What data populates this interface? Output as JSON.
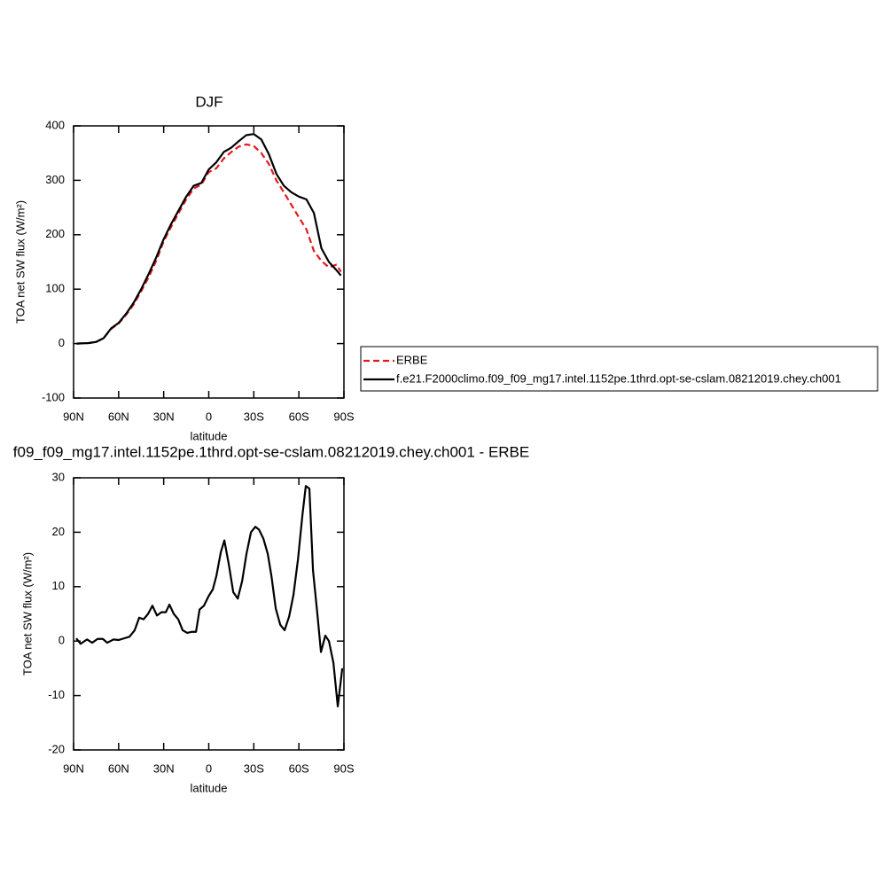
{
  "chart_data": [
    {
      "type": "line",
      "title": "DJF",
      "xlabel": "latitude",
      "ylabel": "TOA net SW flux (W/m²)",
      "x": [
        88,
        80,
        75,
        70,
        65,
        60,
        55,
        50,
        45,
        40,
        35,
        30,
        25,
        20,
        15,
        10,
        5,
        0,
        -5,
        -10,
        -15,
        -20,
        -25,
        -30,
        -35,
        -40,
        -45,
        -50,
        -55,
        -60,
        -65,
        -70,
        -75,
        -80,
        -85,
        -88
      ],
      "series": [
        {
          "name": "ERBE",
          "color": "#e31a1c",
          "dash": true,
          "values": [
            0,
            1,
            3,
            10,
            27,
            37,
            53,
            72,
            96,
            122,
            152,
            188,
            215,
            240,
            265,
            285,
            292,
            315,
            322,
            340,
            352,
            362,
            366,
            363,
            350,
            330,
            300,
            278,
            255,
            232,
            210,
            170,
            152,
            140,
            145,
            132
          ]
        },
        {
          "name": "f.e21.F2000climo.f09_f09_mg17.intel.1152pe.1thrd.opt-se-cslam.08212019.chey.ch001",
          "color": "#000000",
          "dash": false,
          "values": [
            0,
            1,
            3,
            10,
            28,
            38,
            55,
            75,
            100,
            128,
            158,
            192,
            220,
            245,
            270,
            290,
            295,
            320,
            333,
            352,
            360,
            372,
            383,
            385,
            375,
            348,
            312,
            290,
            278,
            270,
            265,
            240,
            175,
            150,
            135,
            125
          ]
        }
      ],
      "xlim": [
        90,
        -90
      ],
      "xticks": [
        {
          "value": 90,
          "label": "90N"
        },
        {
          "value": 60,
          "label": "60N"
        },
        {
          "value": 30,
          "label": "30N"
        },
        0,
        {
          "value": -30,
          "label": "30S"
        },
        {
          "value": -60,
          "label": "60S"
        },
        {
          "value": -90,
          "label": "90S"
        }
      ],
      "ylim": [
        -100,
        400
      ],
      "yticks": [
        -100,
        0,
        100,
        200,
        300,
        400
      ],
      "legend": "right"
    },
    {
      "type": "line",
      "title": "f09_f09_mg17.intel.1152pe.1thrd.opt-se-cslam.08212019.chey.ch001 - ERBE",
      "xlabel": "latitude",
      "ylabel": "TOA net SW flux (W/m²)",
      "x": [
        88.2,
        85.3,
        81.1,
        77.6,
        74.0,
        70.5,
        67.6,
        63.4,
        59.9,
        56.4,
        52.8,
        49.3,
        46.3,
        43.4,
        40.4,
        37.5,
        34.5,
        31.5,
        28.6,
        26.2,
        23.3,
        20.3,
        17.4,
        14.4,
        11.4,
        8.5,
        6.1,
        3.2,
        0.2,
        -2.7,
        -5.1,
        -8.0,
        -10.4,
        -13.4,
        -16.3,
        -19.3,
        -22.2,
        -25.1,
        -28.1,
        -31.0,
        -33.4,
        -36.4,
        -39.3,
        -41.7,
        -44.6,
        -47.6,
        -50.5,
        -53.5,
        -56.4,
        -59.4,
        -62.3,
        -64.6,
        -67.0,
        -69.4,
        -72.3,
        -74.7,
        -77.6,
        -80.0,
        -83.0,
        -85.9,
        -88.9
      ],
      "series": [
        {
          "color": "#000000",
          "dash": false,
          "values": [
            0.5,
            -0.5,
            0.3,
            -0.3,
            0.4,
            0.4,
            -0.3,
            0.3,
            0.2,
            0.5,
            0.8,
            2,
            4.3,
            4,
            5,
            6.5,
            4.7,
            5.3,
            5.3,
            6.7,
            5,
            4,
            2,
            1.5,
            1.7,
            1.7,
            5.8,
            6.5,
            8.2,
            9.5,
            12,
            16.3,
            18.5,
            14,
            9,
            7.8,
            11,
            16,
            20,
            21,
            20.5,
            18.8,
            16,
            12,
            6,
            3,
            2,
            4.5,
            8.5,
            15,
            23,
            28.5,
            28,
            13,
            5,
            -2,
            1,
            0,
            -4,
            -12,
            -5
          ]
        }
      ],
      "xlim": [
        90,
        -90
      ],
      "xticks": [
        {
          "value": 90,
          "label": "90N"
        },
        {
          "value": 60,
          "label": "60N"
        },
        {
          "value": 30,
          "label": "30N"
        },
        0,
        {
          "value": -30,
          "label": "30S"
        },
        {
          "value": -60,
          "label": "60S"
        },
        {
          "value": -90,
          "label": "90S"
        }
      ],
      "ylim": [
        -20,
        30
      ],
      "yticks": [
        -20,
        -10,
        0,
        10,
        20,
        30
      ]
    }
  ]
}
